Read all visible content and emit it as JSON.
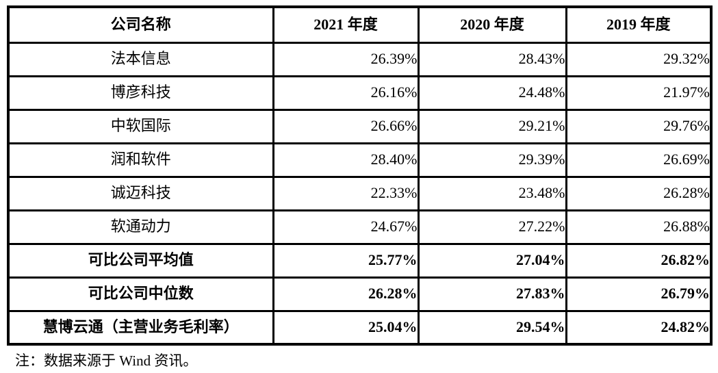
{
  "colors": {
    "border": "#000000",
    "text": "#000000",
    "background": "#ffffff"
  },
  "table": {
    "columns": [
      "公司名称",
      "2021 年度",
      "2020 年度",
      "2019 年度"
    ],
    "rows": [
      {
        "name": "法本信息",
        "values": [
          "26.39%",
          "28.43%",
          "29.32%"
        ],
        "bold": false
      },
      {
        "name": "博彦科技",
        "values": [
          "26.16%",
          "24.48%",
          "21.97%"
        ],
        "bold": false
      },
      {
        "name": "中软国际",
        "values": [
          "26.66%",
          "29.21%",
          "29.76%"
        ],
        "bold": false
      },
      {
        "name": "润和软件",
        "values": [
          "28.40%",
          "29.39%",
          "26.69%"
        ],
        "bold": false
      },
      {
        "name": "诚迈科技",
        "values": [
          "22.33%",
          "23.48%",
          "26.28%"
        ],
        "bold": false
      },
      {
        "name": "软通动力",
        "values": [
          "24.67%",
          "27.22%",
          "26.88%"
        ],
        "bold": false
      },
      {
        "name": "可比公司平均值",
        "values": [
          "25.77%",
          "27.04%",
          "26.82%"
        ],
        "bold": true
      },
      {
        "name": "可比公司中位数",
        "values": [
          "26.28%",
          "27.83%",
          "26.79%"
        ],
        "bold": true
      },
      {
        "name": "慧博云通（主营业务毛利率）",
        "values": [
          "25.04%",
          "29.54%",
          "24.82%"
        ],
        "bold": true
      }
    ]
  },
  "footnote": "注：数据来源于 Wind 资讯。"
}
